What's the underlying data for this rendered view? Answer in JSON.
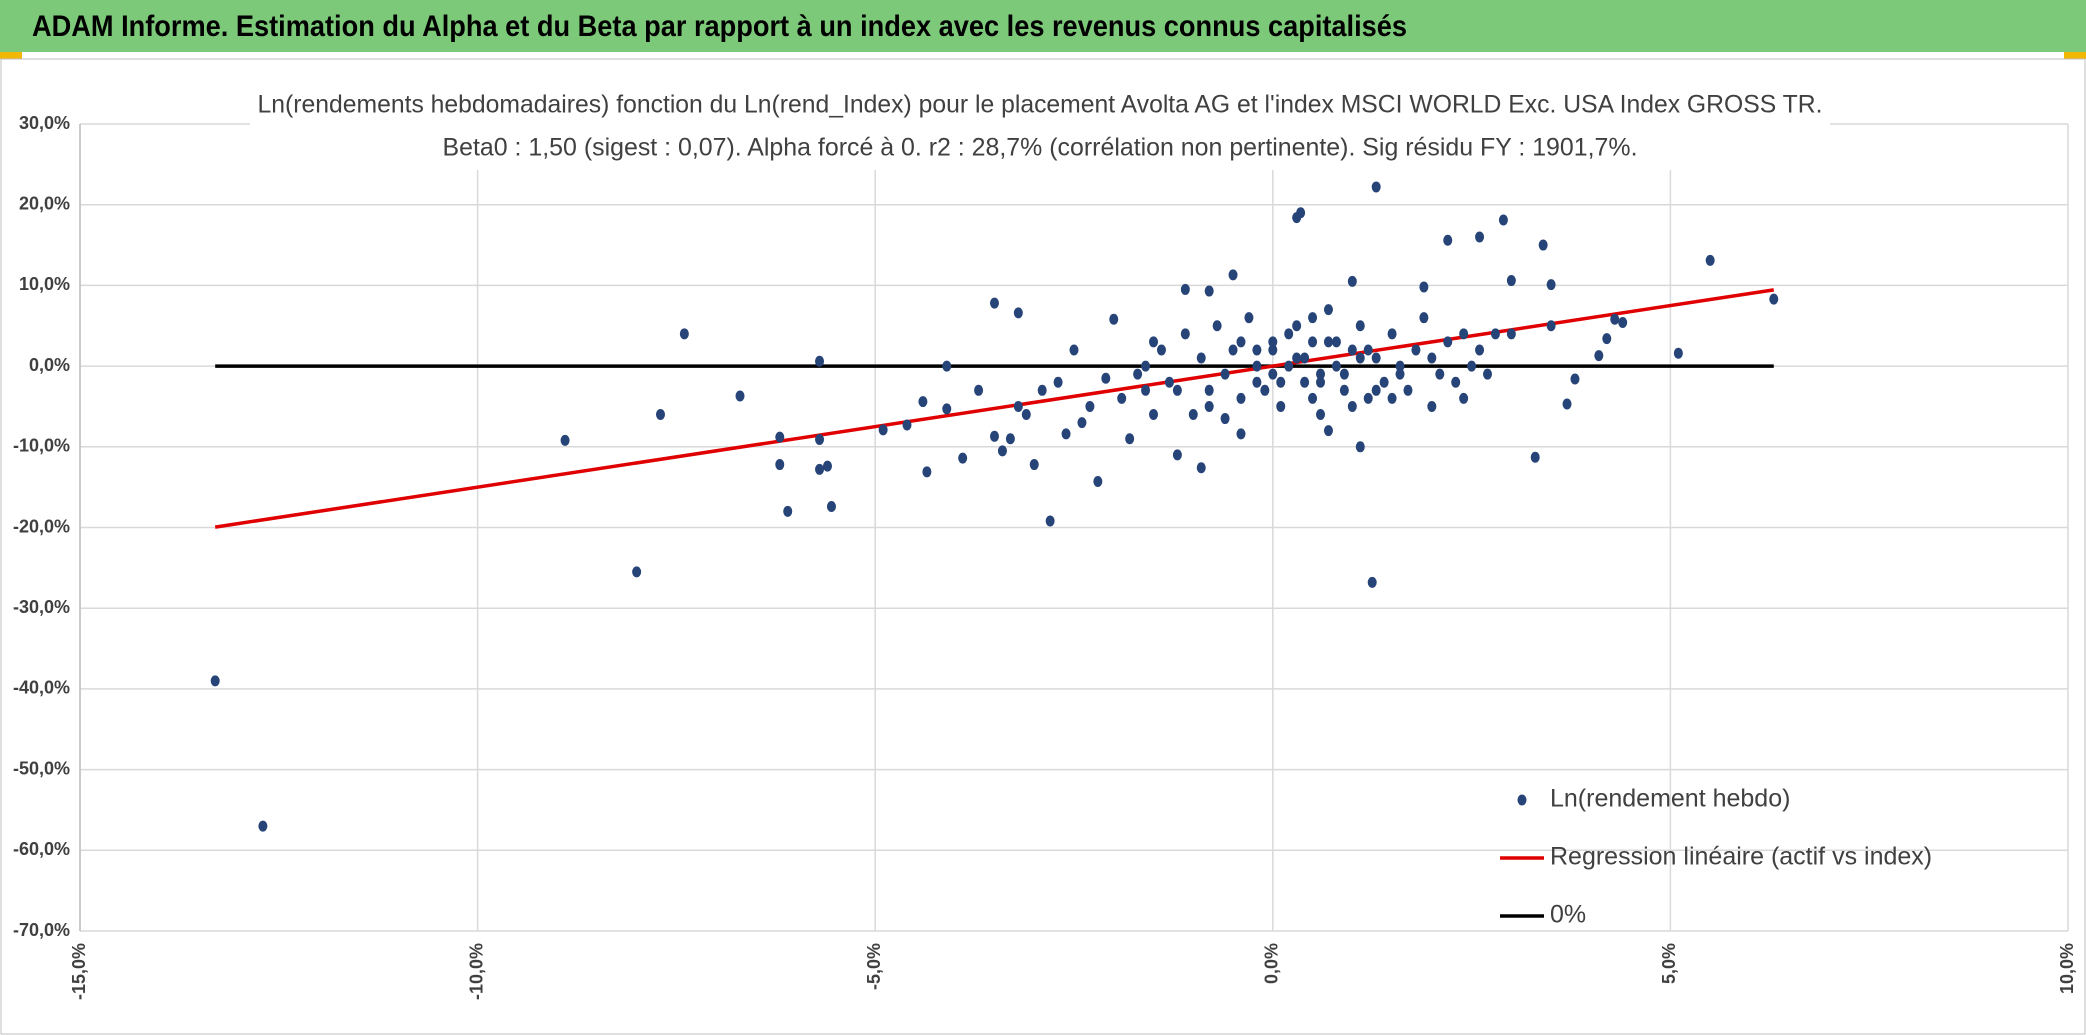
{
  "header": {
    "title": "ADAM Informe. Estimation du Alpha et du Beta par rapport à un index avec les revenus connus capitalisés"
  },
  "chart_data": {
    "type": "scatter",
    "title": "Ln(rendements hebdomadaires) fonction du Ln(rend_Index) pour le placement Avolta AG et l'index MSCI WORLD Exc. USA Index GROSS TR.",
    "subtitle": "Beta0 : 1,50 (sigest : 0,07). Alpha forcé à 0. r2 : 28,7% (corrélation non pertinente). Sig résidu FY : 1901,7%.",
    "xlim": [
      -15,
      10
    ],
    "ylim": [
      -70,
      30
    ],
    "xticks": [
      {
        "value": -15,
        "label": "-15,0%"
      },
      {
        "value": -10,
        "label": "-10,0%"
      },
      {
        "value": -5,
        "label": "-5,0%"
      },
      {
        "value": 0,
        "label": "0,0%"
      },
      {
        "value": 5,
        "label": "5,0%"
      },
      {
        "value": 10,
        "label": "10,0%"
      }
    ],
    "yticks": [
      {
        "value": 30,
        "label": "30,0%"
      },
      {
        "value": 20,
        "label": "20,0%"
      },
      {
        "value": 10,
        "label": "10,0%"
      },
      {
        "value": 0,
        "label": "0,0%"
      },
      {
        "value": -10,
        "label": "-10,0%"
      },
      {
        "value": -20,
        "label": "-20,0%"
      },
      {
        "value": -30,
        "label": "-30,0%"
      },
      {
        "value": -40,
        "label": "-40,0%"
      },
      {
        "value": -50,
        "label": "-50,0%"
      },
      {
        "value": -60,
        "label": "-60,0%"
      },
      {
        "value": -70,
        "label": "-70,0%"
      }
    ],
    "grid": true,
    "legend": "lower right",
    "series": [
      {
        "name": "Ln(rendement hebdo)",
        "color": "#264478",
        "mode": "markers",
        "x": [
          -13.3,
          -12.7,
          -8.0,
          -8.9,
          -7.7,
          -7.4,
          -6.7,
          -6.2,
          -6.2,
          -6.1,
          -5.7,
          -5.7,
          -5.7,
          -5.6,
          -5.55,
          -4.9,
          -4.6,
          -4.4,
          -4.35,
          -4.1,
          -4.1,
          -3.9,
          -3.5,
          -3.5,
          -3.2,
          -3.7,
          -3.4,
          -3.2,
          -3.0,
          -2.8,
          -2.9,
          -2.6,
          -2.5,
          -2.3,
          -2.2,
          -2.1,
          -2.0,
          -1.8,
          -1.6,
          -1.5,
          -1.4,
          -1.2,
          -1.1,
          -0.9,
          -0.8,
          -0.6,
          -0.5,
          -0.4,
          -0.2,
          0,
          0.3,
          0.35,
          0.6,
          0.7,
          1.0,
          1.1,
          1.25,
          1.3,
          1.6,
          1.9,
          2.2,
          2.4,
          2.6,
          2.9,
          3.0,
          3.0,
          3.3,
          3.4,
          3.5,
          3.5,
          3.7,
          3.8,
          4.1,
          4.2,
          4.3,
          4.4,
          5.1,
          5.5,
          6.3,
          -1.9,
          -1.7,
          -1.5,
          -1.3,
          -1.1,
          -1.0,
          -0.9,
          -0.8,
          -0.7,
          -0.6,
          -0.5,
          -0.4,
          -0.3,
          -0.2,
          -0.1,
          0,
          0.1,
          0.2,
          0.3,
          0.4,
          0.5,
          0.6,
          0.7,
          0.8,
          0.9,
          1.0,
          1.1,
          1.2,
          1.3,
          1.4,
          1.5,
          1.6,
          1.7,
          1.8,
          1.9,
          2.0,
          2.1,
          2.2,
          2.3,
          2.4,
          2.5,
          2.6,
          2.7,
          2.8,
          -0.2,
          0.1,
          0.3,
          0.5,
          0.7,
          0.9,
          1.1,
          1.3,
          0.2,
          0.4,
          0.6,
          0.8,
          1.0,
          1.2,
          0.0,
          -0.4,
          -0.8,
          -1.2,
          -1.6,
          -2.4,
          -2.7,
          -3.1,
          -3.3,
          0.5,
          1.5,
          2.0
        ],
        "values": [
          -39,
          -57,
          -25.5,
          -9.2,
          -6,
          4,
          -3.7,
          -8.8,
          -12.2,
          -18,
          0.6,
          -9.1,
          -12.8,
          -12.4,
          -17.4,
          -7.9,
          -7.3,
          -4.4,
          -13.1,
          0,
          -5.3,
          -11.4,
          -8.7,
          7.8,
          6.6,
          -3,
          -10.5,
          -5,
          -12.2,
          -19.2,
          -3,
          -8.4,
          2,
          -5,
          -14.3,
          -1.5,
          5.8,
          -9,
          -3,
          -6,
          2,
          -11,
          9.5,
          -12.6,
          9.3,
          -6.5,
          11.3,
          -8.4,
          -2,
          3,
          18.4,
          19,
          -6,
          -8,
          10.5,
          -10,
          -26.8,
          22.2,
          -1,
          9.8,
          15.6,
          -4,
          16,
          18.1,
          4,
          10.6,
          -11.3,
          15,
          10.1,
          5,
          -4.7,
          -1.6,
          1.3,
          3.4,
          5.8,
          5.4,
          1.6,
          13.1,
          8.3,
          -4,
          -1,
          3,
          -2,
          4,
          -6,
          1,
          -3,
          5,
          -1,
          2,
          -4,
          6,
          0,
          -3,
          2,
          -5,
          4,
          1,
          -2,
          3,
          -1,
          7,
          0,
          -3,
          2,
          5,
          -4,
          1,
          -2,
          4,
          0,
          -3,
          2,
          6,
          1,
          -1,
          3,
          -2,
          4,
          0,
          2,
          -1,
          4,
          2,
          -2,
          5,
          -4,
          3,
          -1,
          1,
          -3,
          0,
          1,
          -2,
          3,
          -5,
          2,
          -1,
          3,
          -5,
          -3,
          0,
          -7,
          -2,
          -6,
          -9,
          6,
          -4,
          -5
        ]
      },
      {
        "name": "Regression linéaire (actif vs index)",
        "color": "#e00000",
        "mode": "line",
        "x": [
          -13.3,
          6.3
        ],
        "values": [
          -19.95,
          9.45
        ]
      },
      {
        "name": "0%",
        "color": "#000000",
        "mode": "line",
        "x": [
          -13.3,
          6.3
        ],
        "values": [
          0,
          0
        ]
      }
    ]
  }
}
